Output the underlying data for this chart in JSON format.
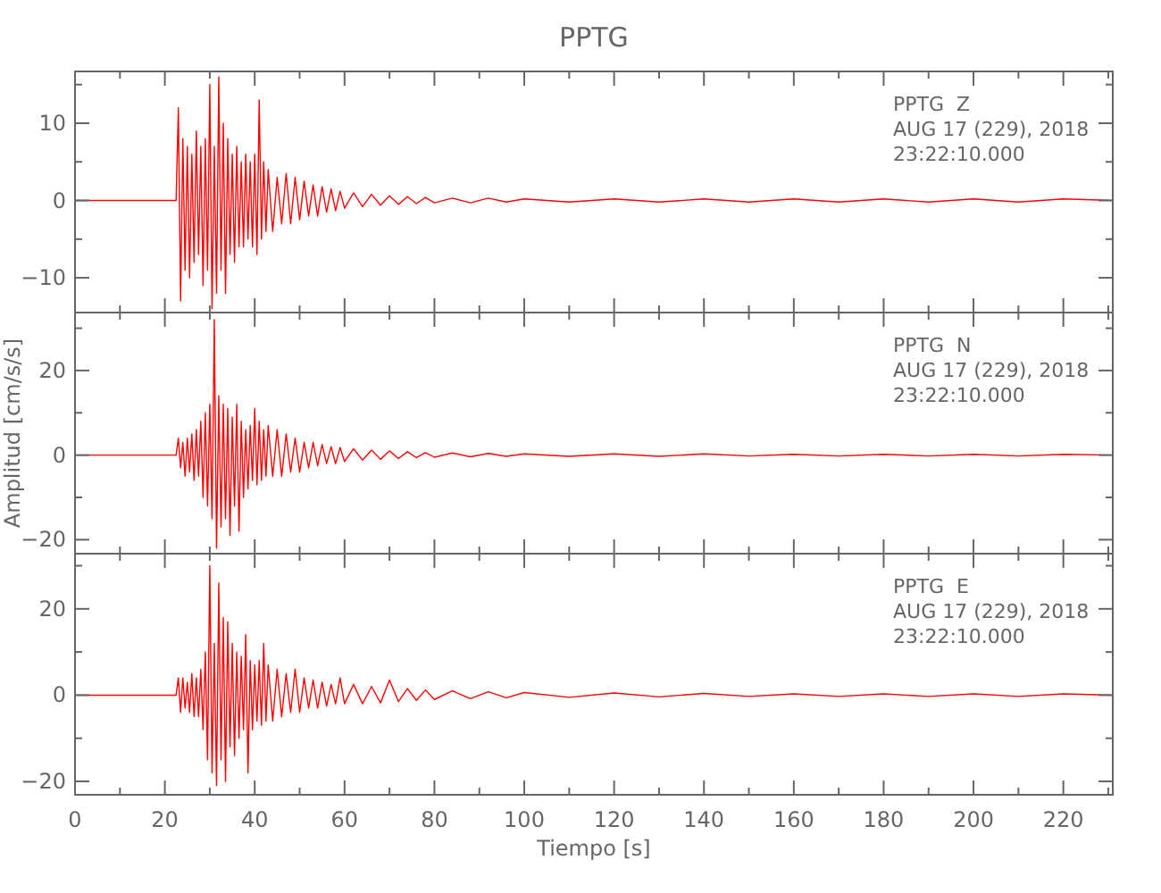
{
  "chart_data": [
    {
      "type": "line",
      "title": "PPTG",
      "annotations": [
        "PPTG  Z",
        "AUG 17 (229), 2018",
        "23:22:10.000"
      ],
      "tick_labels": "y",
      "x": [
        0,
        22.5,
        23,
        23.5,
        24,
        24.5,
        25,
        25.5,
        26,
        26.5,
        27,
        27.5,
        28,
        28.5,
        29,
        29.5,
        30,
        30.5,
        31,
        31.5,
        32,
        32.5,
        33,
        33.5,
        34,
        34.5,
        35,
        35.5,
        36,
        36.5,
        37,
        37.5,
        38,
        38.5,
        39,
        39.5,
        40,
        40.5,
        41,
        41.5,
        42,
        42.5,
        43,
        44,
        45,
        46,
        47,
        48,
        49,
        50,
        51,
        52,
        53,
        54,
        55,
        56,
        57,
        58,
        59,
        60,
        62,
        64,
        66,
        68,
        70,
        72,
        74,
        76,
        78,
        80,
        84,
        88,
        92,
        96,
        100,
        110,
        120,
        130,
        140,
        150,
        160,
        170,
        180,
        190,
        200,
        210,
        220,
        231
      ],
      "series": [
        {
          "color": "#ff0000",
          "values": [
            0,
            0,
            12,
            -13,
            8,
            -9,
            7,
            -10,
            6,
            -8,
            9,
            -7,
            7,
            -11,
            8,
            -9,
            15,
            -14,
            7,
            -12,
            16,
            -9,
            10,
            -12,
            8,
            -7,
            6,
            -8,
            7,
            -6,
            5,
            -6,
            6,
            -5,
            5,
            -6,
            6,
            -7,
            13,
            -5,
            5,
            -4,
            4,
            -4,
            3,
            -3,
            3.5,
            -3,
            3,
            -2.5,
            2.5,
            -2,
            2,
            -2,
            1.8,
            -1.5,
            1.5,
            -1.3,
            1.2,
            -1,
            1,
            -0.8,
            0.8,
            -0.6,
            0.6,
            -0.5,
            0.5,
            -0.4,
            0.4,
            -0.3,
            0.3,
            -0.3,
            0.3,
            -0.2,
            0.2,
            -0.2,
            0.2,
            -0.2,
            0.2,
            -0.2,
            0.2,
            -0.2,
            0.2,
            -0.2,
            0.2,
            -0.2,
            0.2,
            0
          ]
        }
      ],
      "xlim": [
        0,
        231
      ],
      "xticks": [
        0,
        {
          "value": 10,
          "label": null
        },
        20,
        {
          "value": 30,
          "label": null
        },
        40,
        {
          "value": 50,
          "label": null
        },
        60,
        {
          "value": 70,
          "label": null
        },
        80,
        {
          "value": 90,
          "label": null
        },
        100,
        {
          "value": 110,
          "label": null
        },
        120,
        {
          "value": 130,
          "label": null
        },
        140,
        {
          "value": 150,
          "label": null
        },
        160,
        {
          "value": 170,
          "label": null
        },
        180,
        {
          "value": 190,
          "label": null
        },
        200,
        {
          "value": 210,
          "label": null
        },
        220,
        {
          "value": 230,
          "label": null
        }
      ],
      "ylim": [
        -14.5,
        16.7
      ],
      "yticks": [
        {
          "value": -5,
          "label": null
        },
        -10,
        0,
        10,
        {
          "value": 5,
          "label": null
        },
        {
          "value": 15,
          "label": null
        }
      ]
    },
    {
      "type": "line",
      "ylabel": "Amplitud [cm/s/s]",
      "annotations": [
        "PPTG  N",
        "AUG 17 (229), 2018",
        "23:22:10.000"
      ],
      "tick_labels": "y",
      "x": [
        0,
        22.5,
        23,
        23.5,
        24,
        24.5,
        25,
        25.5,
        26,
        26.5,
        27,
        27.5,
        28,
        28.5,
        29,
        29.5,
        30,
        30.5,
        31,
        31.5,
        32,
        32.5,
        33,
        33.5,
        34,
        34.5,
        35,
        35.5,
        36,
        36.5,
        37,
        37.5,
        38,
        38.5,
        39,
        39.5,
        40,
        40.5,
        41,
        41.5,
        42,
        42.5,
        43,
        44,
        45,
        46,
        47,
        48,
        49,
        50,
        51,
        52,
        53,
        54,
        55,
        56,
        57,
        58,
        59,
        60,
        62,
        64,
        66,
        68,
        70,
        72,
        74,
        76,
        78,
        80,
        84,
        88,
        92,
        96,
        100,
        110,
        120,
        130,
        140,
        150,
        160,
        170,
        180,
        190,
        200,
        210,
        220,
        231
      ],
      "series": [
        {
          "color": "#ff0000",
          "values": [
            0,
            0,
            4,
            -3,
            3,
            -5,
            4,
            -4,
            5,
            -6,
            6,
            -5,
            8,
            -10,
            10,
            -12,
            12,
            -15,
            32,
            -22,
            14,
            -17,
            12,
            -15,
            11,
            -19,
            9,
            -12,
            12,
            -18,
            8,
            -10,
            6,
            -8,
            7,
            -6,
            11,
            -7,
            8,
            -6,
            6,
            -5,
            7,
            -5,
            6,
            -5,
            5,
            -4,
            4,
            -4,
            3,
            -3,
            3,
            -2.5,
            2.5,
            -2,
            2,
            -2,
            1.8,
            -1.5,
            1.5,
            -1.2,
            1.2,
            -1,
            1,
            -0.8,
            0.8,
            -0.6,
            0.6,
            -0.5,
            0.5,
            -0.4,
            0.4,
            -0.3,
            0.3,
            -0.3,
            0.3,
            -0.3,
            0.3,
            -0.2,
            0.2,
            -0.2,
            0.2,
            -0.2,
            0.2,
            -0.2,
            0.2,
            0
          ]
        }
      ],
      "xlim": [
        0,
        231
      ],
      "xticks": [
        0,
        {
          "value": 10,
          "label": null
        },
        20,
        {
          "value": 30,
          "label": null
        },
        40,
        {
          "value": 50,
          "label": null
        },
        60,
        {
          "value": 70,
          "label": null
        },
        80,
        {
          "value": 90,
          "label": null
        },
        100,
        {
          "value": 110,
          "label": null
        },
        120,
        {
          "value": 130,
          "label": null
        },
        140,
        {
          "value": 150,
          "label": null
        },
        160,
        {
          "value": 170,
          "label": null
        },
        180,
        {
          "value": 190,
          "label": null
        },
        200,
        {
          "value": 210,
          "label": null
        },
        220,
        {
          "value": 230,
          "label": null
        }
      ],
      "ylim": [
        -23.3,
        33.7
      ],
      "yticks": [
        -20,
        {
          "value": -10,
          "label": null
        },
        0,
        {
          "value": 10,
          "label": null
        },
        20,
        {
          "value": 30,
          "label": null
        }
      ]
    },
    {
      "type": "line",
      "xlabel": "Tiempo [s]",
      "annotations": [
        "PPTG  E",
        "AUG 17 (229), 2018",
        "23:22:10.000"
      ],
      "x": [
        0,
        22.5,
        23,
        23.5,
        24,
        24.5,
        25,
        25.5,
        26,
        26.5,
        27,
        27.5,
        28,
        28.5,
        29,
        29.5,
        30,
        30.5,
        31,
        31.5,
        32,
        32.5,
        33,
        33.5,
        34,
        34.5,
        35,
        35.5,
        36,
        36.5,
        37,
        37.5,
        38,
        38.5,
        39,
        39.5,
        40,
        40.5,
        41,
        41.5,
        42,
        42.5,
        43,
        44,
        45,
        46,
        47,
        48,
        49,
        50,
        51,
        52,
        53,
        54,
        55,
        56,
        57,
        58,
        59,
        60,
        62,
        64,
        66,
        68,
        70,
        72,
        74,
        76,
        78,
        80,
        84,
        88,
        92,
        96,
        100,
        110,
        120,
        130,
        140,
        150,
        160,
        170,
        180,
        190,
        200,
        210,
        220,
        231
      ],
      "series": [
        {
          "color": "#ff0000",
          "values": [
            0,
            0,
            4,
            -4,
            4,
            -3,
            3,
            -4,
            5,
            -5,
            4,
            -5,
            6,
            -8,
            10,
            -15,
            30,
            -18,
            12,
            -21,
            26,
            -15,
            18,
            -20,
            17,
            -12,
            12,
            -14,
            10,
            -10,
            9,
            -8,
            14,
            -18,
            8,
            -8,
            7,
            -6,
            8,
            -7,
            12,
            -6,
            7,
            -6,
            6,
            -5,
            5,
            -4,
            6,
            -4,
            4,
            -3,
            3.5,
            -3,
            3,
            -2.5,
            2.5,
            -2,
            4,
            -2,
            2.5,
            -2,
            2,
            -1.8,
            3.5,
            -1.5,
            1.5,
            -1.2,
            1.2,
            -1,
            1,
            -0.8,
            0.8,
            -0.6,
            0.6,
            -0.5,
            0.5,
            -0.4,
            0.4,
            -0.3,
            0.3,
            -0.3,
            0.3,
            -0.3,
            0.3,
            -0.3,
            0.3,
            0
          ]
        }
      ],
      "xlim": [
        0,
        231
      ],
      "xticks": [
        0,
        {
          "value": 10,
          "label": null
        },
        20,
        {
          "value": 30,
          "label": null
        },
        40,
        {
          "value": 50,
          "label": null
        },
        60,
        {
          "value": 70,
          "label": null
        },
        80,
        {
          "value": 90,
          "label": null
        },
        100,
        {
          "value": 110,
          "label": null
        },
        120,
        {
          "value": 130,
          "label": null
        },
        140,
        {
          "value": 150,
          "label": null
        },
        160,
        {
          "value": 170,
          "label": null
        },
        180,
        {
          "value": 190,
          "label": null
        },
        200,
        {
          "value": 210,
          "label": null
        },
        220,
        {
          "value": 230,
          "label": null
        }
      ],
      "ylim": [
        -23.1,
        32.8
      ],
      "yticks": [
        -20,
        {
          "value": -10,
          "label": null
        },
        0,
        {
          "value": 10,
          "label": null
        },
        20,
        {
          "value": 30,
          "label": null
        }
      ]
    }
  ]
}
